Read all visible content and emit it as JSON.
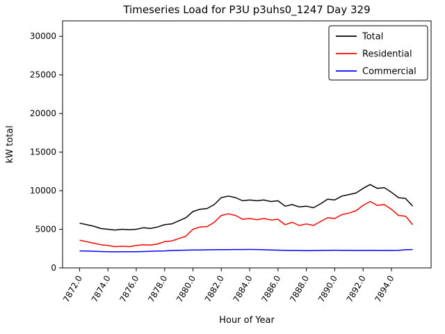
{
  "figure": {
    "title": "Timeseries Load for P3U p3uhs0_1247  Day 329",
    "xlabel": "Hour of Year",
    "ylabel": "kW total"
  },
  "chart_data": {
    "type": "line",
    "title": "Timeseries Load for P3U p3uhs0_1247  Day 329",
    "xlabel": "Hour of Year",
    "ylabel": "kW total",
    "xlim": [
      7870.8,
      7896.8
    ],
    "ylim": [
      0,
      32000
    ],
    "yticks": [
      0,
      5000,
      10000,
      15000,
      20000,
      25000,
      30000
    ],
    "xticks": [
      7872,
      7874,
      7876,
      7878,
      7880,
      7882,
      7884,
      7886,
      7888,
      7890,
      7892,
      7894
    ],
    "xtick_labels": [
      "7872.0",
      "7874.0",
      "7876.0",
      "7878.0",
      "7880.0",
      "7882.0",
      "7884.0",
      "7886.0",
      "7888.0",
      "7890.0",
      "7892.0",
      "7894.0"
    ],
    "grid": false,
    "legend": {
      "position": "upper right",
      "entries": [
        "Total",
        "Residential",
        "Commercial"
      ]
    },
    "x": [
      7872.0,
      7872.5,
      7873.0,
      7873.5,
      7874.0,
      7874.5,
      7875.0,
      7875.5,
      7876.0,
      7876.5,
      7877.0,
      7877.5,
      7878.0,
      7878.5,
      7879.0,
      7879.5,
      7880.0,
      7880.5,
      7881.0,
      7881.5,
      7882.0,
      7882.5,
      7883.0,
      7883.5,
      7884.0,
      7884.5,
      7885.0,
      7885.5,
      7886.0,
      7886.5,
      7887.0,
      7887.5,
      7888.0,
      7888.5,
      7889.0,
      7889.5,
      7890.0,
      7890.5,
      7891.0,
      7891.5,
      7892.0,
      7892.5,
      7893.0,
      7893.5,
      7894.0,
      7894.5,
      7895.0,
      7895.5
    ],
    "series": [
      {
        "name": "Total",
        "color": "#000000",
        "values": [
          5800,
          5600,
          5400,
          5100,
          5000,
          4900,
          5000,
          4950,
          5000,
          5200,
          5100,
          5300,
          5600,
          5700,
          6100,
          6500,
          7300,
          7600,
          7700,
          8200,
          9100,
          9300,
          9100,
          8700,
          8800,
          8700,
          8800,
          8600,
          8700,
          8000,
          8200,
          7900,
          8000,
          7800,
          8300,
          8900,
          8800,
          9300,
          9500,
          9700,
          10300,
          10800,
          10300,
          10400,
          9800,
          9100,
          9000,
          8000
        ]
      },
      {
        "name": "Residential",
        "color": "#ff0000",
        "values": [
          3600,
          3400,
          3200,
          3000,
          2900,
          2750,
          2800,
          2750,
          2900,
          3000,
          2950,
          3100,
          3400,
          3500,
          3800,
          4100,
          5000,
          5300,
          5350,
          5900,
          6800,
          7000,
          6800,
          6300,
          6400,
          6250,
          6400,
          6200,
          6300,
          5600,
          5900,
          5500,
          5700,
          5500,
          6000,
          6500,
          6400,
          6900,
          7100,
          7400,
          8100,
          8600,
          8100,
          8200,
          7600,
          6800,
          6700,
          5600
        ]
      },
      {
        "name": "Commercial",
        "color": "#0000ff",
        "values": [
          2200,
          2180,
          2150,
          2120,
          2100,
          2080,
          2100,
          2090,
          2100,
          2120,
          2150,
          2180,
          2200,
          2250,
          2280,
          2300,
          2320,
          2330,
          2340,
          2350,
          2360,
          2370,
          2380,
          2380,
          2390,
          2380,
          2350,
          2330,
          2300,
          2280,
          2260,
          2250,
          2230,
          2240,
          2260,
          2280,
          2290,
          2280,
          2270,
          2260,
          2260,
          2270,
          2260,
          2250,
          2260,
          2280,
          2350,
          2380
        ]
      }
    ]
  }
}
